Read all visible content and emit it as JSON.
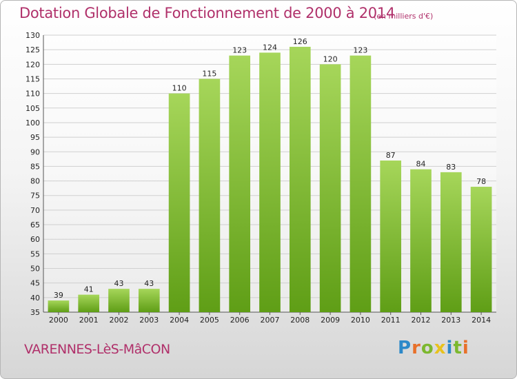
{
  "chart_data": {
    "type": "bar",
    "title": "Dotation Globale de Fonctionnement de 2000 à 2014",
    "subtitle": "(en milliers d'€)",
    "categories": [
      "2000",
      "2001",
      "2002",
      "2003",
      "2004",
      "2005",
      "2006",
      "2007",
      "2008",
      "2009",
      "2010",
      "2011",
      "2012",
      "2013",
      "2014"
    ],
    "values": [
      39,
      41,
      43,
      43,
      110,
      115,
      123,
      124,
      126,
      120,
      123,
      87,
      84,
      83,
      78
    ],
    "ylim": [
      35,
      130
    ],
    "ytick_step": 5,
    "xlabel": "",
    "ylabel": "",
    "grid": true,
    "colors": {
      "bar_light": "#a6d65a",
      "bar_dark": "#5f9e16",
      "grid": "#cfcfcf",
      "title": "#b0306a"
    }
  },
  "footer": {
    "commune": "VARENNES-LèS-MâCON",
    "logo_letters": [
      {
        "ch": "P",
        "color": "#2d89c9"
      },
      {
        "ch": "r",
        "color": "#e8702a"
      },
      {
        "ch": "o",
        "color": "#7cb82f"
      },
      {
        "ch": "x",
        "color": "#e8c21e"
      },
      {
        "ch": "i",
        "color": "#2d89c9"
      },
      {
        "ch": "t",
        "color": "#7cb82f"
      },
      {
        "ch": "i",
        "color": "#e8702a"
      }
    ]
  }
}
